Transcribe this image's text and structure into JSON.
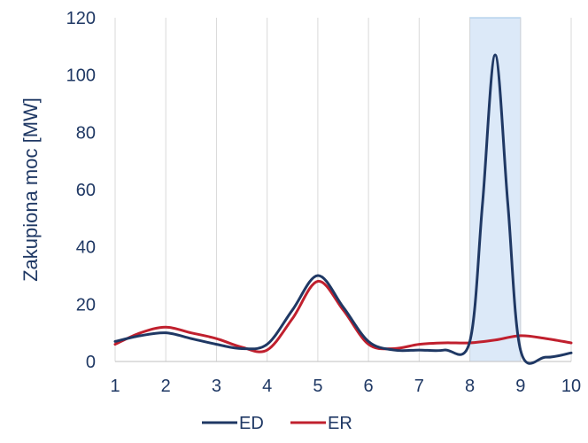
{
  "chart_data": {
    "type": "line",
    "ylabel": "Zakupiona moc [MW]",
    "xlabel": "",
    "xlim": [
      1,
      10
    ],
    "ylim": [
      0,
      120
    ],
    "xticks": [
      "1",
      "2",
      "3",
      "4",
      "5",
      "6",
      "7",
      "8",
      "9",
      "10"
    ],
    "yticks": [
      "0",
      "20",
      "40",
      "60",
      "80",
      "100",
      "120"
    ],
    "grid": "vertical",
    "legend": "bottom",
    "highlight_range": [
      8,
      9
    ],
    "highlight_color": "#dce9f8",
    "series": [
      {
        "name": "ED",
        "color": "#1f3864",
        "x": [
          1,
          1.5,
          2,
          2.5,
          3,
          3.5,
          4,
          4.5,
          5,
          5.5,
          6,
          6.5,
          7,
          7.5,
          8,
          8.25,
          8.5,
          8.75,
          9,
          9.5,
          10
        ],
        "y": [
          7,
          9,
          10,
          8,
          6,
          4.5,
          6,
          18,
          30,
          19,
          7,
          4,
          4,
          4,
          7,
          55,
          107,
          55,
          4,
          1.5,
          3
        ]
      },
      {
        "name": "ER",
        "color": "#c0202e",
        "x": [
          1,
          1.5,
          2,
          2.5,
          3,
          3.5,
          4,
          4.5,
          5,
          5.5,
          6,
          6.5,
          7,
          7.5,
          8,
          8.5,
          9,
          9.5,
          10
        ],
        "y": [
          6,
          10,
          12,
          10,
          8,
          5,
          4,
          15,
          28,
          18,
          6,
          4.5,
          6,
          6.5,
          6.5,
          7.5,
          9,
          8,
          6.5
        ]
      }
    ]
  }
}
